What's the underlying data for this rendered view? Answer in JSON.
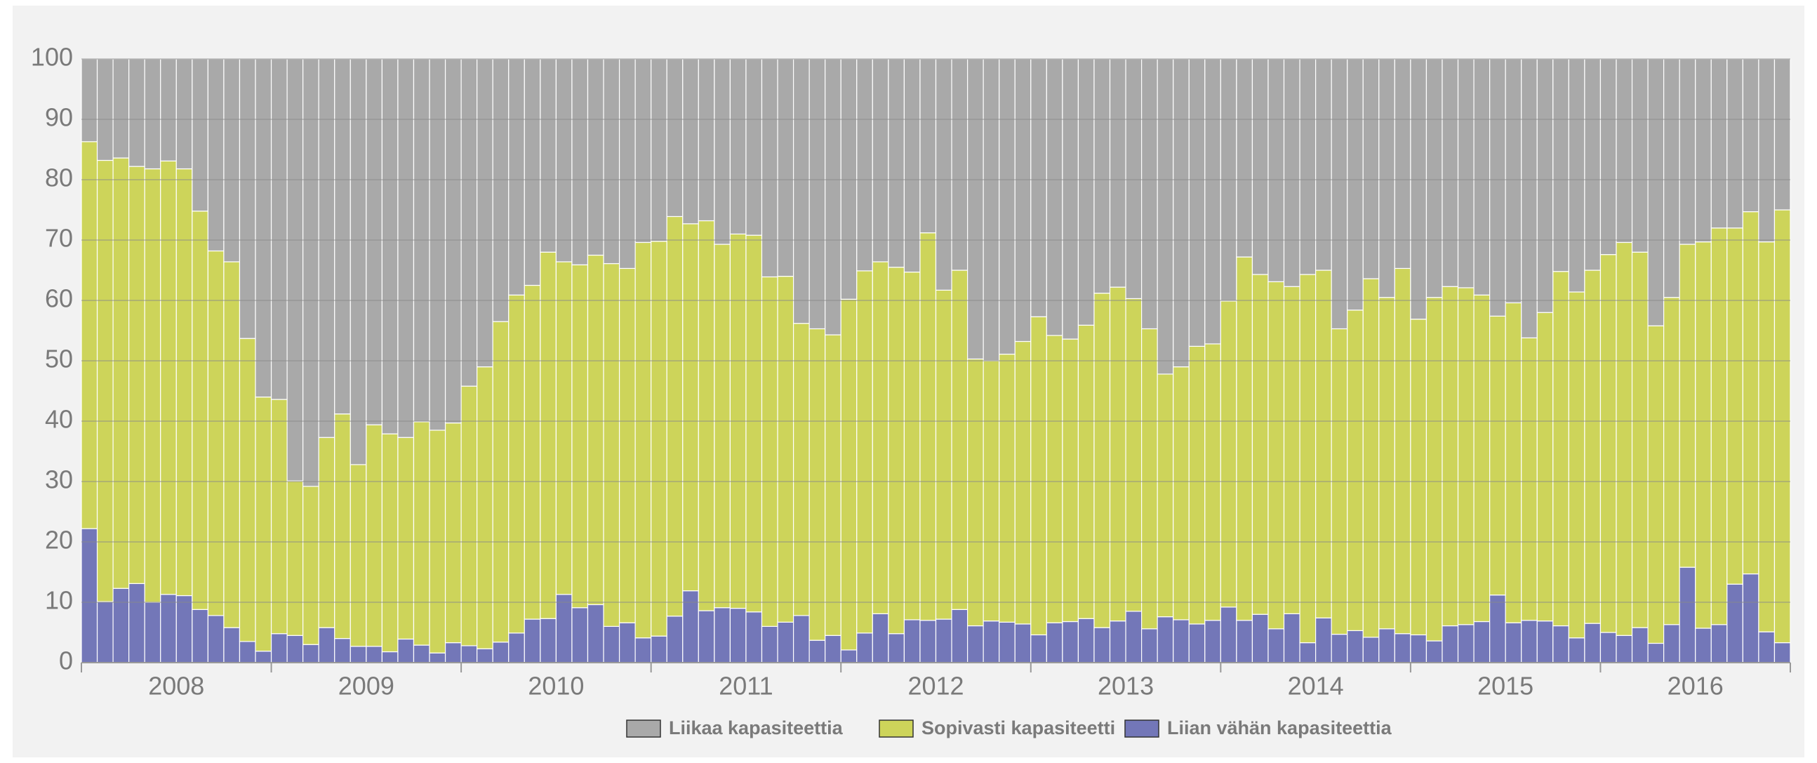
{
  "chart_data": {
    "type": "stacked-bar",
    "categories": [
      null,
      null,
      null,
      null,
      null,
      null,
      "2008",
      null,
      null,
      null,
      null,
      null,
      null,
      null,
      null,
      null,
      null,
      null,
      "2009",
      null,
      null,
      null,
      null,
      null,
      null,
      null,
      null,
      null,
      null,
      null,
      "2010",
      null,
      null,
      null,
      null,
      null,
      null,
      null,
      null,
      null,
      null,
      null,
      "2011",
      null,
      null,
      null,
      null,
      null,
      null,
      null,
      null,
      null,
      null,
      null,
      "2012",
      null,
      null,
      null,
      null,
      null,
      null,
      null,
      null,
      null,
      null,
      null,
      "2013",
      null,
      null,
      null,
      null,
      null,
      null,
      null,
      null,
      null,
      null,
      null,
      "2014",
      null,
      null,
      null,
      null,
      null,
      null,
      null,
      null,
      null,
      null,
      null,
      "2015",
      null,
      null,
      null,
      null,
      null,
      null,
      null,
      null,
      null,
      null,
      null,
      "2016",
      null,
      null,
      null,
      null,
      null
    ],
    "series": [
      {
        "name": "Liikaa kapasiteettia",
        "color": "#a9a9a9",
        "values": [
          13.7,
          16.8,
          16.4,
          17.8,
          18.2,
          16.9,
          18.2,
          25.2,
          31.8,
          33.6,
          46.3,
          56.0,
          56.4,
          69.9,
          70.8,
          62.7,
          58.8,
          67.2,
          60.6,
          62.1,
          62.7,
          60.1,
          61.5,
          60.3,
          54.2,
          51.0,
          43.5,
          39.1,
          37.5,
          32.0,
          33.6,
          34.1,
          32.5,
          33.9,
          34.7,
          30.4,
          30.2,
          26.1,
          27.3,
          26.8,
          30.7,
          29.0,
          29.2,
          36.1,
          36.0,
          43.8,
          44.7,
          45.7,
          39.8,
          35.1,
          33.6,
          34.5,
          35.3,
          28.8,
          38.3,
          35.0,
          49.7,
          50.0,
          48.9,
          46.8,
          42.7,
          45.8,
          46.4,
          44.1,
          38.8,
          37.8,
          39.7,
          44.7,
          52.2,
          51.0,
          47.6,
          47.2,
          40.1,
          32.8,
          35.7,
          36.9,
          37.7,
          35.7,
          35.0,
          44.7,
          41.6,
          36.4,
          39.5,
          34.7,
          43.1,
          39.5,
          37.7,
          37.9,
          39.1,
          42.6,
          40.4,
          46.2,
          42.0,
          35.2,
          38.6,
          35.0,
          32.4,
          30.4,
          32.0,
          44.2,
          39.5,
          30.7,
          30.3,
          28.0,
          28.0,
          25.3,
          30.3,
          25.0
        ]
      },
      {
        "name": "Sopivasti kapasiteetti",
        "color": "#cdd45a",
        "values": [
          64.1,
          73.1,
          71.3,
          69.1,
          71.8,
          71.8,
          70.7,
          66.0,
          60.4,
          60.6,
          50.2,
          42.1,
          38.8,
          25.6,
          26.2,
          31.5,
          37.2,
          30.1,
          36.7,
          36.1,
          33.4,
          37.0,
          36.9,
          36.4,
          43.0,
          46.7,
          53.1,
          56.0,
          55.3,
          60.7,
          55.1,
          56.8,
          57.9,
          60.1,
          58.7,
          65.5,
          65.4,
          66.2,
          60.8,
          64.6,
          60.2,
          62.0,
          62.4,
          57.9,
          57.3,
          48.4,
          51.6,
          49.8,
          58.1,
          60.0,
          58.3,
          60.7,
          57.6,
          64.2,
          54.5,
          56.2,
          44.2,
          43.1,
          44.4,
          46.8,
          52.7,
          47.6,
          46.8,
          48.6,
          55.4,
          55.3,
          51.8,
          49.7,
          40.2,
          41.9,
          46.0,
          45.8,
          50.7,
          60.2,
          56.3,
          57.5,
          54.2,
          61.0,
          57.6,
          50.6,
          53.1,
          59.4,
          54.9,
          60.5,
          52.3,
          56.9,
          56.2,
          55.8,
          54.1,
          46.2,
          53.0,
          46.8,
          51.1,
          58.7,
          57.3,
          58.5,
          62.6,
          65.1,
          62.2,
          52.6,
          54.2,
          53.5,
          64.0,
          65.7,
          59.0,
          60.0,
          64.6,
          71.7
        ]
      },
      {
        "name": "Liian vähän kapasiteettia",
        "color": "#7377b8",
        "values": [
          22.2,
          10.1,
          12.3,
          13.1,
          10.0,
          11.3,
          11.1,
          8.8,
          7.8,
          5.8,
          3.5,
          1.9,
          4.8,
          4.5,
          3.0,
          5.8,
          4.0,
          2.7,
          2.7,
          1.8,
          3.9,
          2.9,
          1.6,
          3.3,
          2.8,
          2.3,
          3.4,
          4.9,
          7.2,
          7.3,
          11.3,
          9.1,
          9.6,
          6.0,
          6.6,
          4.1,
          4.4,
          7.7,
          11.9,
          8.6,
          9.1,
          9.0,
          8.4,
          6.0,
          6.7,
          7.8,
          3.7,
          4.5,
          2.1,
          4.9,
          8.1,
          4.8,
          7.1,
          7.0,
          7.2,
          8.8,
          6.1,
          6.9,
          6.7,
          6.4,
          4.6,
          6.6,
          6.8,
          7.3,
          5.8,
          6.9,
          8.5,
          5.6,
          7.6,
          7.1,
          6.4,
          7.0,
          9.2,
          7.0,
          8.0,
          5.6,
          8.1,
          3.3,
          7.4,
          4.7,
          5.3,
          4.2,
          5.6,
          4.8,
          4.6,
          3.6,
          6.1,
          6.3,
          6.8,
          11.2,
          6.6,
          7.0,
          6.9,
          6.1,
          4.1,
          6.5,
          5.0,
          4.5,
          5.8,
          3.2,
          6.3,
          15.8,
          5.7,
          6.3,
          13.0,
          14.7,
          5.1,
          3.3
        ]
      }
    ],
    "ylim": [
      0,
      100
    ],
    "yticks": [
      0,
      10,
      20,
      30,
      40,
      50,
      60,
      70,
      80,
      90,
      100
    ],
    "grid": true,
    "legend": "bottom"
  }
}
